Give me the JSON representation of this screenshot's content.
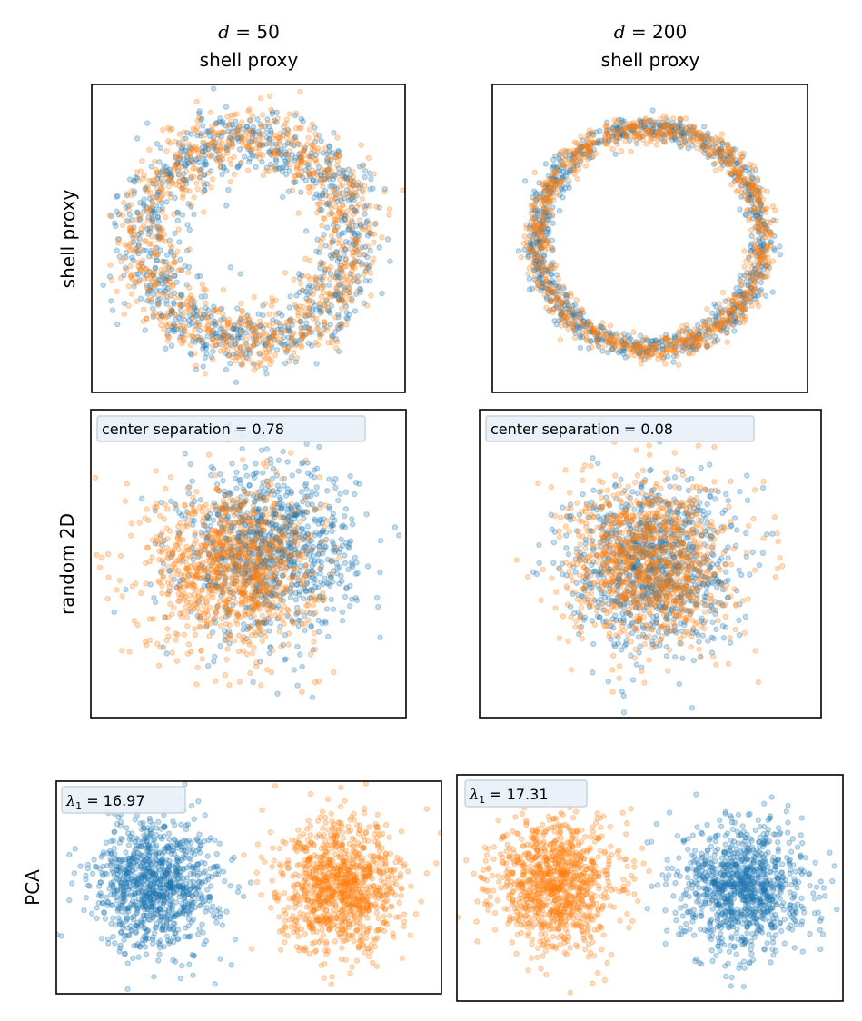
{
  "colors": {
    "series_a": "#1f77b4",
    "series_b": "#ff7f0e",
    "annotation_bg": "#e8f0f8",
    "annotation_edge": "#c9d3dd"
  },
  "chart_data": {
    "type": "scatter",
    "layout": "3x2 grid",
    "column_titles": [
      {
        "var": "d",
        "eq": " = 50",
        "sub": "shell proxy"
      },
      {
        "var": "d",
        "eq": " = 200",
        "sub": "shell proxy"
      }
    ],
    "row_labels": [
      "shell proxy",
      "random 2D",
      "PCA"
    ],
    "axes_ticks": "none",
    "grid": false,
    "series": [
      "class A (blue)",
      "class B (orange)"
    ],
    "points_per_class": 1000,
    "panels": [
      {
        "row": 0,
        "col": 0,
        "kind": "ring",
        "xlim": [
          -1.5,
          1.5
        ],
        "ylim": [
          -1.5,
          1.5
        ],
        "ring_radius": 1.0,
        "ring_width": 0.16,
        "annotation": null
      },
      {
        "row": 0,
        "col": 1,
        "kind": "ring",
        "xlim": [
          -1.4,
          1.4
        ],
        "ylim": [
          -1.4,
          1.4
        ],
        "ring_radius": 1.0,
        "ring_width": 0.06,
        "annotation": null
      },
      {
        "row": 1,
        "col": 0,
        "kind": "gaussian",
        "xlim": [
          -3.5,
          3.5
        ],
        "ylim": [
          -3.5,
          3.5
        ],
        "centers": {
          "a": [
            0.45,
            0.3
          ],
          "b": [
            -0.33,
            -0.1
          ]
        },
        "std": 0.95,
        "annotation": {
          "label": "center separation = ",
          "value": "0.78"
        }
      },
      {
        "row": 1,
        "col": 1,
        "kind": "gaussian",
        "xlim": [
          -4,
          4
        ],
        "ylim": [
          -3.5,
          3.5
        ],
        "centers": {
          "a": [
            0.04,
            -0.02
          ],
          "b": [
            -0.04,
            0.02
          ]
        },
        "std": 0.95,
        "annotation": {
          "label": "center separation = ",
          "value": "0.08"
        }
      },
      {
        "row": 2,
        "col": 0,
        "kind": "gaussian",
        "xlim": [
          -15,
          15
        ],
        "ylim": [
          -8,
          8
        ],
        "centers": {
          "a": [
            -7.2,
            0.2
          ],
          "b": [
            7.2,
            0.0
          ]
        },
        "std": 2.4,
        "annotation": {
          "symbol": "λ",
          "subscript": "1",
          "label": " = ",
          "value": "16.97"
        }
      },
      {
        "row": 2,
        "col": 1,
        "kind": "gaussian",
        "xlim": [
          -15,
          15
        ],
        "ylim": [
          -8.5,
          8.5
        ],
        "centers": {
          "a": [
            7.3,
            0.0
          ],
          "b": [
            -7.3,
            0.3
          ]
        },
        "std": 2.4,
        "annotation": {
          "symbol": "λ",
          "subscript": "1",
          "label": " = ",
          "value": "17.31"
        }
      }
    ]
  }
}
